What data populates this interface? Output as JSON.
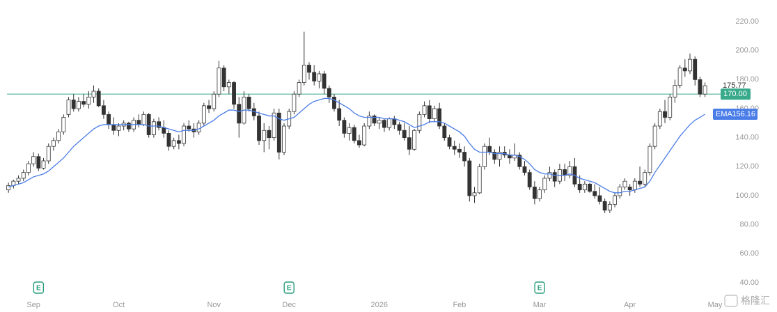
{
  "chart_data": {
    "type": "candlestick",
    "up_color": "#ffffff",
    "down_color": "#333333",
    "outline_color": "#333333",
    "xlim": [
      -0.3,
      141
    ],
    "ylim": [
      40,
      220
    ],
    "yticks": [
      {
        "value": 40,
        "label": "40.00"
      },
      {
        "value": 60,
        "label": "60.00"
      },
      {
        "value": 80,
        "label": "80.00"
      },
      {
        "value": 100,
        "label": "100.00"
      },
      {
        "value": 120,
        "label": "120.00"
      },
      {
        "value": 140,
        "label": "140.00"
      },
      {
        "value": 160,
        "label": "160.00"
      },
      {
        "value": 180,
        "label": "180.00"
      },
      {
        "value": 200,
        "label": "200.00"
      },
      {
        "value": 220,
        "label": "220.00"
      }
    ],
    "xticks": [
      {
        "value": 5,
        "label": "Sep"
      },
      {
        "value": 22,
        "label": "Oct"
      },
      {
        "value": 41,
        "label": "Nov"
      },
      {
        "value": 56,
        "label": "Dec"
      },
      {
        "value": 74,
        "label": "2026"
      },
      {
        "value": 90,
        "label": "Feb"
      },
      {
        "value": 106,
        "label": "Mar"
      },
      {
        "value": 124,
        "label": "Apr"
      },
      {
        "value": 141,
        "label": "May"
      }
    ],
    "candles": [
      [
        104,
        109,
        102,
        107
      ],
      [
        107,
        111,
        105,
        110
      ],
      [
        110,
        114,
        108,
        112
      ],
      [
        112,
        118,
        110,
        116
      ],
      [
        116,
        124,
        114,
        122
      ],
      [
        122,
        130,
        120,
        127
      ],
      [
        127,
        129,
        117,
        119
      ],
      [
        119,
        126,
        118,
        124
      ],
      [
        124,
        136,
        122,
        134
      ],
      [
        134,
        140,
        131,
        138
      ],
      [
        138,
        146,
        136,
        144
      ],
      [
        144,
        156,
        142,
        154
      ],
      [
        156,
        168,
        154,
        166
      ],
      [
        166,
        170,
        158,
        160
      ],
      [
        160,
        168,
        158,
        165
      ],
      [
        165,
        170,
        161,
        163
      ],
      [
        163,
        172,
        160,
        168
      ],
      [
        168,
        176,
        164,
        172
      ],
      [
        172,
        174,
        161,
        162
      ],
      [
        162,
        166,
        153,
        156
      ],
      [
        156,
        158,
        146,
        149
      ],
      [
        149,
        154,
        142,
        145
      ],
      [
        145,
        150,
        141,
        148
      ],
      [
        148,
        152,
        145,
        150
      ],
      [
        150,
        151,
        144,
        146
      ],
      [
        146,
        154,
        144,
        152
      ],
      [
        152,
        156,
        147,
        149
      ],
      [
        149,
        158,
        148,
        156
      ],
      [
        156,
        157,
        140,
        142
      ],
      [
        142,
        153,
        140,
        151
      ],
      [
        151,
        154,
        145,
        147
      ],
      [
        147,
        152,
        140,
        143
      ],
      [
        143,
        145,
        131,
        134
      ],
      [
        134,
        140,
        132,
        138
      ],
      [
        138,
        142,
        132,
        136
      ],
      [
        136,
        150,
        134,
        148
      ],
      [
        148,
        152,
        144,
        146
      ],
      [
        146,
        150,
        140,
        144
      ],
      [
        144,
        152,
        142,
        150
      ],
      [
        150,
        164,
        148,
        162
      ],
      [
        162,
        166,
        157,
        160
      ],
      [
        160,
        172,
        158,
        170
      ],
      [
        170,
        193,
        168,
        188
      ],
      [
        188,
        190,
        172,
        175
      ],
      [
        175,
        180,
        170,
        178
      ],
      [
        178,
        179,
        160,
        163
      ],
      [
        163,
        168,
        140,
        150
      ],
      [
        150,
        172,
        149,
        168
      ],
      [
        168,
        170,
        158,
        160
      ],
      [
        160,
        164,
        152,
        155
      ],
      [
        155,
        158,
        135,
        138
      ],
      [
        138,
        150,
        130,
        145
      ],
      [
        145,
        148,
        132,
        140
      ],
      [
        140,
        160,
        138,
        157
      ],
      [
        157,
        160,
        125,
        130
      ],
      [
        130,
        150,
        128,
        148
      ],
      [
        148,
        160,
        146,
        158
      ],
      [
        158,
        172,
        156,
        170
      ],
      [
        170,
        180,
        168,
        178
      ],
      [
        178,
        213,
        176,
        190
      ],
      [
        190,
        192,
        180,
        185
      ],
      [
        185,
        190,
        176,
        179
      ],
      [
        179,
        186,
        174,
        184
      ],
      [
        184,
        186,
        170,
        174
      ],
      [
        174,
        176,
        164,
        168
      ],
      [
        168,
        170,
        158,
        160
      ],
      [
        160,
        166,
        148,
        152
      ],
      [
        152,
        154,
        140,
        143
      ],
      [
        143,
        150,
        138,
        147
      ],
      [
        147,
        149,
        136,
        138
      ],
      [
        138,
        142,
        133,
        135
      ],
      [
        135,
        150,
        134,
        148
      ],
      [
        148,
        158,
        146,
        155
      ],
      [
        155,
        156,
        148,
        150
      ],
      [
        150,
        154,
        146,
        152
      ],
      [
        152,
        153,
        144,
        147
      ],
      [
        147,
        154,
        145,
        153
      ],
      [
        153,
        155,
        146,
        149
      ],
      [
        149,
        151,
        142,
        145
      ],
      [
        145,
        150,
        138,
        140
      ],
      [
        140,
        148,
        128,
        132
      ],
      [
        132,
        146,
        131,
        145
      ],
      [
        145,
        158,
        143,
        156
      ],
      [
        156,
        165,
        154,
        162
      ],
      [
        162,
        166,
        150,
        153
      ],
      [
        153,
        162,
        151,
        160
      ],
      [
        160,
        164,
        146,
        148
      ],
      [
        148,
        150,
        138,
        140
      ],
      [
        140,
        142,
        132,
        134
      ],
      [
        134,
        138,
        128,
        132
      ],
      [
        132,
        136,
        126,
        130
      ],
      [
        130,
        134,
        120,
        124
      ],
      [
        124,
        126,
        96,
        100
      ],
      [
        100,
        106,
        95,
        102
      ],
      [
        102,
        122,
        101,
        120
      ],
      [
        120,
        136,
        118,
        134
      ],
      [
        134,
        140,
        128,
        130
      ],
      [
        130,
        132,
        122,
        125
      ],
      [
        125,
        134,
        120,
        130
      ],
      [
        130,
        134,
        126,
        128
      ],
      [
        128,
        132,
        122,
        126
      ],
      [
        126,
        136,
        124,
        128
      ],
      [
        128,
        130,
        118,
        120
      ],
      [
        120,
        124,
        114,
        116
      ],
      [
        116,
        118,
        104,
        106
      ],
      [
        106,
        110,
        94,
        98
      ],
      [
        98,
        106,
        96,
        104
      ],
      [
        104,
        114,
        102,
        112
      ],
      [
        112,
        120,
        110,
        116
      ],
      [
        116,
        118,
        106,
        110
      ],
      [
        110,
        122,
        108,
        118
      ],
      [
        118,
        122,
        110,
        114
      ],
      [
        114,
        124,
        112,
        120
      ],
      [
        120,
        126,
        106,
        108
      ],
      [
        108,
        114,
        102,
        104
      ],
      [
        104,
        110,
        102,
        108
      ],
      [
        108,
        109,
        102,
        103
      ],
      [
        103,
        108,
        98,
        100
      ],
      [
        100,
        106,
        94,
        96
      ],
      [
        96,
        98,
        88,
        90
      ],
      [
        90,
        96,
        88,
        94
      ],
      [
        94,
        102,
        92,
        100
      ],
      [
        100,
        108,
        98,
        106
      ],
      [
        106,
        112,
        104,
        110
      ],
      [
        106,
        108,
        100,
        104
      ],
      [
        104,
        112,
        102,
        110
      ],
      [
        110,
        120,
        106,
        108
      ],
      [
        108,
        118,
        106,
        116
      ],
      [
        116,
        136,
        114,
        134
      ],
      [
        134,
        150,
        132,
        148
      ],
      [
        148,
        160,
        146,
        158
      ],
      [
        158,
        166,
        150,
        154
      ],
      [
        154,
        170,
        152,
        168
      ],
      [
        168,
        180,
        164,
        176
      ],
      [
        176,
        190,
        174,
        188
      ],
      [
        188,
        194,
        182,
        186
      ],
      [
        186,
        198,
        184,
        194
      ],
      [
        194,
        196,
        176,
        180
      ],
      [
        180,
        182,
        168,
        170
      ],
      [
        170,
        178,
        168,
        175.77
      ]
    ],
    "ema": {
      "name": "EMA",
      "color": "#4a7de8",
      "last_label": "156.16",
      "values": [
        106,
        107,
        108,
        109,
        111,
        113,
        114,
        115,
        117,
        120,
        123,
        126,
        130,
        134,
        137,
        140,
        143,
        146,
        148,
        149,
        149,
        149,
        149,
        149,
        149,
        149,
        149,
        149,
        148,
        148,
        148,
        147,
        146,
        145,
        144,
        145,
        145,
        145,
        146,
        148,
        150,
        152,
        155,
        157,
        159,
        159,
        158,
        159,
        159,
        158,
        157,
        156,
        155,
        155,
        153,
        152,
        153,
        154,
        157,
        160,
        163,
        165,
        166,
        167,
        167,
        166,
        164,
        162,
        160,
        157,
        155,
        154,
        154,
        154,
        154,
        153,
        153,
        153,
        152,
        151,
        149,
        147,
        148,
        149,
        151,
        151,
        151,
        150,
        148,
        146,
        144,
        141,
        136,
        132,
        130,
        130,
        130,
        129,
        129,
        129,
        128,
        128,
        127,
        125,
        122,
        118,
        116,
        115,
        115,
        114,
        114,
        114,
        115,
        114,
        112,
        111,
        110,
        109,
        107,
        105,
        103,
        102,
        102,
        103,
        103,
        104,
        105,
        106,
        110,
        116,
        121,
        126,
        131,
        136,
        141,
        145,
        149,
        152,
        154,
        156.16
      ]
    },
    "price_line": {
      "value": 170,
      "label": "170.00",
      "color": "#3aaa8c"
    },
    "last_price": {
      "value": 175.77,
      "label": "175.77"
    },
    "events": [
      {
        "x": 6,
        "label": "E"
      },
      {
        "x": 56,
        "label": "E"
      },
      {
        "x": 106,
        "label": "E"
      }
    ],
    "watermark": "格隆汇"
  }
}
